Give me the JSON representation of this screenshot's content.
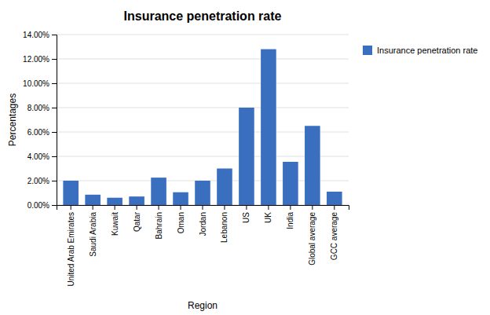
{
  "chart_data": {
    "type": "bar",
    "title": "Insurance penetration rate",
    "xlabel": "Region",
    "ylabel": "Percentages",
    "categories": [
      "United Arab Emirates",
      "Saudi Arabia",
      "Kuwait",
      "Qatar",
      "Bahrain",
      "Oman",
      "Jordan",
      "Lebanon",
      "US",
      "UK",
      "India",
      "Global average",
      "GCC average"
    ],
    "series": [
      {
        "name": "Insurance penetration rate",
        "color": "#3A6EBF",
        "values": [
          0.02,
          0.0085,
          0.006,
          0.007,
          0.0225,
          0.0105,
          0.02,
          0.03,
          0.08,
          0.128,
          0.0355,
          0.065,
          0.011
        ]
      }
    ],
    "ylim": [
      0,
      0.14
    ],
    "yticks": [
      {
        "value": 0.0,
        "label": "0.00%"
      },
      {
        "value": 0.02,
        "label": "2.00%"
      },
      {
        "value": 0.04,
        "label": "4.00%"
      },
      {
        "value": 0.06,
        "label": "6.00%"
      },
      {
        "value": 0.08,
        "label": "8.00%"
      },
      {
        "value": 0.1,
        "label": "10.00%"
      },
      {
        "value": 0.12,
        "label": "12.00%"
      },
      {
        "value": 0.14,
        "label": "14.00%"
      }
    ],
    "grid": true,
    "legend": "right"
  }
}
